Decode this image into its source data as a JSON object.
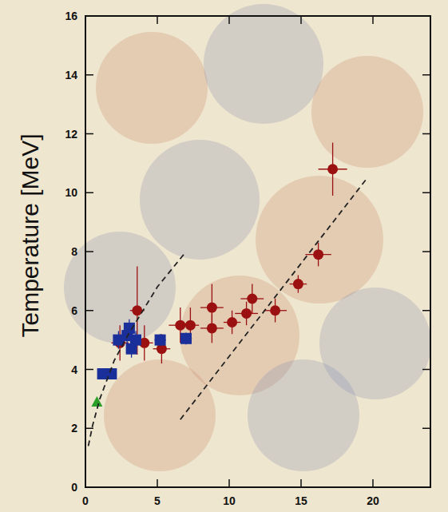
{
  "chart_data": {
    "type": "scatter",
    "y_label": "Temperature [MeV]",
    "xlim": [
      0,
      24
    ],
    "xticks": [
      0,
      5,
      10,
      15,
      20
    ],
    "ylim": [
      0,
      16
    ],
    "yticks": [
      0,
      2,
      4,
      6,
      8,
      10,
      12,
      14,
      16
    ],
    "grid": false,
    "series": [
      {
        "type": "scatter",
        "marker": "circle",
        "color": "#9b1010",
        "x": [
          3.6,
          2.4,
          4.1,
          5.3,
          6.6,
          7.3,
          8.8,
          8.8,
          10.2,
          11.2,
          11.6,
          13.2,
          14.8,
          16.2,
          17.2
        ],
        "values": [
          6.0,
          4.9,
          4.9,
          4.7,
          5.5,
          5.5,
          6.1,
          5.4,
          5.6,
          5.9,
          6.4,
          6.0,
          6.9,
          7.9,
          10.8
        ],
        "errors": [
          1.5,
          0.6,
          0.6,
          0.5,
          0.6,
          0.6,
          0.8,
          0.5,
          0.4,
          0.4,
          0.5,
          0.4,
          0.3,
          0.4,
          0.9
        ],
        "x_errors": [
          0.5,
          0.6,
          0.6,
          0.6,
          0.8,
          0.6,
          0.8,
          0.8,
          0.6,
          0.8,
          0.8,
          0.8,
          0.6,
          0.9,
          1.0
        ]
      },
      {
        "type": "scatter",
        "marker": "square",
        "color": "#1a2f9a",
        "x": [
          1.2,
          1.8,
          2.3,
          2.9,
          3.05,
          3.2,
          3.5,
          5.2,
          7.0
        ],
        "values": [
          3.85,
          3.85,
          5.0,
          5.15,
          5.4,
          4.7,
          5.0,
          5.0,
          5.05
        ],
        "errors": [
          0.15,
          0.15,
          0.3,
          0.3,
          0.3,
          0.3,
          0.3,
          0.2,
          0.2
        ],
        "x_errors": [
          0.3,
          0.3,
          0.3,
          0.3,
          0.3,
          0.3,
          0.3,
          0.4,
          0.4
        ]
      },
      {
        "type": "scatter",
        "marker": "triangle",
        "color": "#2aa02a",
        "x": [
          0.8
        ],
        "values": [
          2.9
        ],
        "errors": [
          0.1
        ],
        "x_errors": [
          0.1
        ]
      },
      {
        "type": "line",
        "line_style": "dashed",
        "color": "#222222",
        "x": [
          0.2,
          0.5,
          1,
          2,
          3,
          4,
          5,
          6,
          7
        ],
        "values": [
          1.4,
          2.1,
          3.0,
          4.3,
          5.2,
          6.0,
          6.8,
          7.4,
          8.0
        ]
      },
      {
        "type": "line",
        "line_style": "dashed",
        "color": "#222222",
        "x": [
          6.6,
          19.6
        ],
        "values": [
          2.3,
          10.5
        ]
      }
    ]
  }
}
